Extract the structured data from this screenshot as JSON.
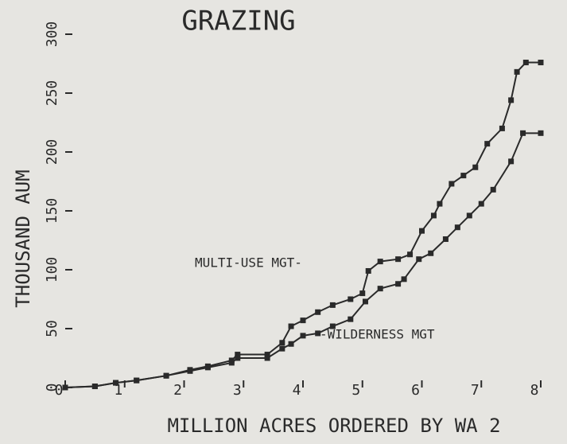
{
  "chart_data": {
    "type": "line",
    "title": "GRAZING",
    "x_label": "MILLION ACRES ORDERED BY WA 2",
    "y_label": "THOUSAND AUM",
    "annotations": [
      "MULTI-USE MGT-",
      "-WILDERNESS MGT"
    ],
    "xlim": [
      0,
      8
    ],
    "xticks": [
      0,
      1,
      2,
      3,
      4,
      5,
      6,
      7,
      8
    ],
    "ylim": [
      0,
      300
    ],
    "yticks": [
      0,
      50,
      100,
      150,
      200,
      250,
      300
    ],
    "series": [
      {
        "name": "MULTI-USE MGT",
        "color": "#2a2a2a",
        "x": [
          0,
          0.5,
          0.85,
          1.2,
          1.7,
          2.1,
          2.4,
          2.8,
          2.9,
          3.4,
          3.65,
          3.8,
          4.0,
          4.25,
          4.5,
          4.8,
          5.0,
          5.1,
          5.3,
          5.6,
          5.8,
          6.0,
          6.2,
          6.3,
          6.5,
          6.7,
          6.9,
          7.1,
          7.35,
          7.5,
          7.6,
          7.75,
          8
        ],
        "values": [
          0,
          1,
          4,
          6,
          10,
          15,
          18,
          23,
          28,
          28,
          38,
          52,
          57,
          64,
          70,
          75,
          80,
          99,
          107,
          109,
          113,
          133,
          146,
          156,
          173,
          180,
          187,
          207,
          220,
          244,
          268,
          276,
          276
        ]
      },
      {
        "name": "WILDERNESS MGT",
        "color": "#2a2a2a",
        "x": [
          0,
          0.5,
          0.85,
          1.2,
          1.7,
          2.1,
          2.4,
          2.8,
          2.9,
          3.4,
          3.65,
          3.8,
          4.0,
          4.25,
          4.5,
          4.8,
          5.05,
          5.3,
          5.6,
          5.7,
          5.95,
          6.15,
          6.4,
          6.6,
          6.8,
          7.0,
          7.2,
          7.5,
          7.7,
          8
        ],
        "values": [
          0,
          1,
          4,
          6,
          10,
          14,
          17,
          21,
          25,
          25,
          33,
          37,
          44,
          46,
          52,
          58,
          73,
          84,
          88,
          92,
          109,
          114,
          126,
          136,
          146,
          156,
          168,
          192,
          216,
          216
        ]
      }
    ]
  }
}
